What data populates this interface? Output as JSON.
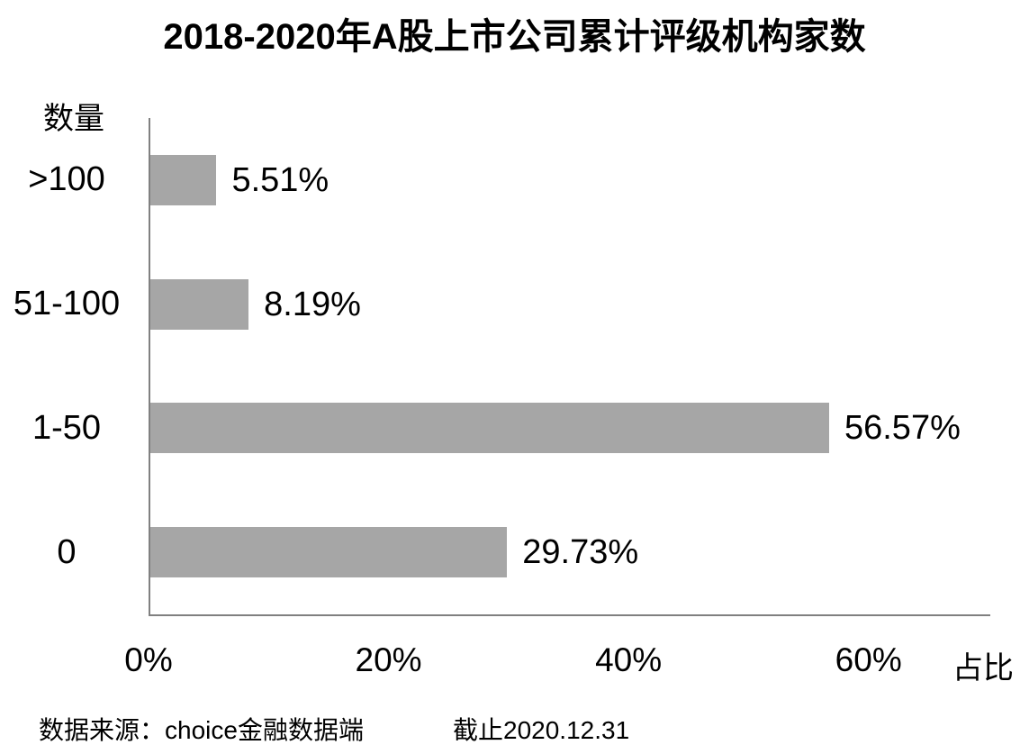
{
  "title": "2018-2020年A股上市公司累计评级机构家数",
  "chart_data": {
    "type": "bar",
    "orientation": "horizontal",
    "title": "2018-2020年A股上市公司累计评级机构家数",
    "y_axis_label": "数量",
    "x_axis_label": "占比",
    "categories": [
      ">100",
      "51-100",
      "1-50",
      "0"
    ],
    "values": [
      5.51,
      8.19,
      56.57,
      29.73
    ],
    "value_labels": [
      "5.51%",
      "8.19%",
      "56.57%",
      "29.73%"
    ],
    "x_ticks": [
      "0%",
      "20%",
      "40%",
      "60%"
    ],
    "x_tick_values": [
      0,
      20,
      40,
      60
    ],
    "xlim": [
      0,
      70
    ],
    "grid": false,
    "legend": false,
    "bar_color": "#a6a6a6",
    "axis_color": "#808080",
    "text_color": "#000000"
  },
  "footer": {
    "source": "数据来源：choice金融数据端",
    "cutoff": "截止2020.12.31"
  }
}
